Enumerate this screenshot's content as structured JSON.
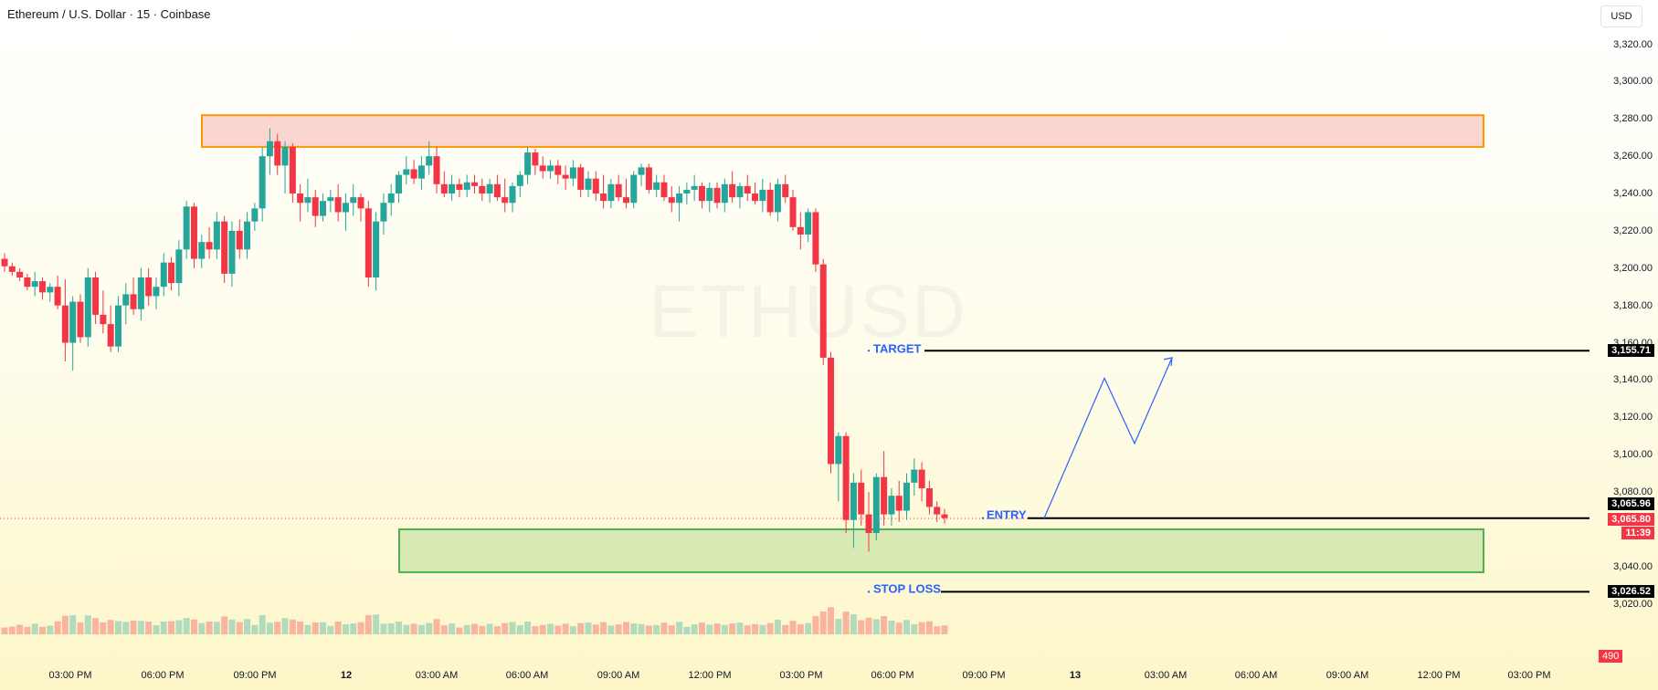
{
  "header": {
    "title": "Ethereum / U.S. Dollar · 15 · Coinbase",
    "currency": "USD"
  },
  "watermark": "ETHUSD",
  "price_axis": {
    "ticks": [
      "3,320.00",
      "3,300.00",
      "3,280.00",
      "3,260.00",
      "3,240.00",
      "3,220.00",
      "3,200.00",
      "3,180.00",
      "3,160.00",
      "3,140.00",
      "3,120.00",
      "3,100.00",
      "3,080.00",
      "3,040.00",
      "3,020.00"
    ],
    "target_label": "3,155.71",
    "entry_label": "3,065.96",
    "last_price": "3,065.80",
    "countdown": "11:39",
    "stop_label": "3,026.52"
  },
  "time_axis": {
    "ticks": [
      "03:00 PM",
      "06:00 PM",
      "09:00 PM",
      "12",
      "03:00 AM",
      "06:00 AM",
      "09:00 AM",
      "12:00 PM",
      "03:00 PM",
      "06:00 PM",
      "09:00 PM",
      "13",
      "03:00 AM",
      "06:00 AM",
      "09:00 AM",
      "12:00 PM",
      "03:00 PM"
    ]
  },
  "annotations": {
    "target": "TARGET",
    "entry": "ENTRY",
    "stop_loss": "STOP LOSS"
  },
  "volume_label": "490",
  "colors": {
    "up": "#26a69a",
    "down": "#f23645",
    "target_line": "#000000",
    "annot": "#2962ff",
    "supply_fill": "#fbd5d0",
    "supply_border": "#ff9800",
    "demand_fill": "#d9e9b4",
    "demand_border": "#4caf50"
  },
  "chart_data": {
    "type": "candlestick",
    "symbol": "ETHUSD",
    "interval": "15",
    "candles_ohlc": [
      [
        3205,
        3208,
        3198,
        3201
      ],
      [
        3201,
        3203,
        3196,
        3198
      ],
      [
        3198,
        3200,
        3193,
        3195
      ],
      [
        3195,
        3197,
        3188,
        3190
      ],
      [
        3190,
        3198,
        3185,
        3193
      ],
      [
        3193,
        3195,
        3183,
        3187
      ],
      [
        3187,
        3192,
        3182,
        3190
      ],
      [
        3190,
        3196,
        3178,
        3180
      ],
      [
        3180,
        3194,
        3150,
        3160
      ],
      [
        3160,
        3185,
        3145,
        3182
      ],
      [
        3182,
        3186,
        3160,
        3163
      ],
      [
        3163,
        3200,
        3158,
        3195
      ],
      [
        3195,
        3198,
        3170,
        3175
      ],
      [
        3175,
        3188,
        3165,
        3170
      ],
      [
        3170,
        3180,
        3155,
        3158
      ],
      [
        3158,
        3185,
        3155,
        3180
      ],
      [
        3180,
        3192,
        3170,
        3186
      ],
      [
        3186,
        3195,
        3175,
        3178
      ],
      [
        3178,
        3200,
        3172,
        3195
      ],
      [
        3195,
        3200,
        3180,
        3185
      ],
      [
        3185,
        3195,
        3178,
        3190
      ],
      [
        3190,
        3208,
        3185,
        3203
      ],
      [
        3203,
        3206,
        3188,
        3192
      ],
      [
        3192,
        3215,
        3185,
        3210
      ],
      [
        3210,
        3236,
        3205,
        3233
      ],
      [
        3233,
        3235,
        3200,
        3205
      ],
      [
        3205,
        3218,
        3200,
        3214
      ],
      [
        3214,
        3222,
        3205,
        3210
      ],
      [
        3210,
        3230,
        3205,
        3225
      ],
      [
        3225,
        3228,
        3192,
        3197
      ],
      [
        3197,
        3225,
        3190,
        3220
      ],
      [
        3220,
        3226,
        3205,
        3210
      ],
      [
        3210,
        3230,
        3205,
        3225
      ],
      [
        3225,
        3235,
        3220,
        3232
      ],
      [
        3232,
        3265,
        3225,
        3260
      ],
      [
        3260,
        3275,
        3250,
        3268
      ],
      [
        3268,
        3272,
        3250,
        3255
      ],
      [
        3255,
        3268,
        3240,
        3265
      ],
      [
        3265,
        3267,
        3235,
        3240
      ],
      [
        3240,
        3245,
        3225,
        3235
      ],
      [
        3235,
        3248,
        3230,
        3238
      ],
      [
        3238,
        3242,
        3222,
        3228
      ],
      [
        3228,
        3240,
        3225,
        3236
      ],
      [
        3236,
        3242,
        3230,
        3238
      ],
      [
        3238,
        3245,
        3225,
        3230
      ],
      [
        3230,
        3240,
        3220,
        3235
      ],
      [
        3235,
        3245,
        3228,
        3238
      ],
      [
        3238,
        3240,
        3225,
        3232
      ],
      [
        3232,
        3236,
        3190,
        3195
      ],
      [
        3195,
        3230,
        3188,
        3225
      ],
      [
        3225,
        3240,
        3218,
        3235
      ],
      [
        3235,
        3245,
        3228,
        3240
      ],
      [
        3240,
        3252,
        3235,
        3250
      ],
      [
        3250,
        3260,
        3245,
        3253
      ],
      [
        3253,
        3258,
        3245,
        3248
      ],
      [
        3248,
        3260,
        3242,
        3255
      ],
      [
        3255,
        3268,
        3250,
        3260
      ],
      [
        3260,
        3265,
        3240,
        3245
      ],
      [
        3245,
        3252,
        3238,
        3240
      ],
      [
        3240,
        3250,
        3236,
        3245
      ],
      [
        3245,
        3248,
        3238,
        3242
      ],
      [
        3242,
        3250,
        3238,
        3246
      ],
      [
        3246,
        3250,
        3240,
        3244
      ],
      [
        3244,
        3248,
        3236,
        3240
      ],
      [
        3240,
        3248,
        3235,
        3245
      ],
      [
        3245,
        3250,
        3236,
        3238
      ],
      [
        3238,
        3248,
        3230,
        3235
      ],
      [
        3235,
        3246,
        3230,
        3244
      ],
      [
        3244,
        3252,
        3238,
        3250
      ],
      [
        3250,
        3265,
        3245,
        3262
      ],
      [
        3262,
        3264,
        3250,
        3255
      ],
      [
        3255,
        3260,
        3248,
        3252
      ],
      [
        3252,
        3258,
        3248,
        3255
      ],
      [
        3255,
        3258,
        3245,
        3250
      ],
      [
        3250,
        3255,
        3242,
        3248
      ],
      [
        3248,
        3258,
        3244,
        3254
      ],
      [
        3254,
        3256,
        3238,
        3242
      ],
      [
        3242,
        3252,
        3238,
        3248
      ],
      [
        3248,
        3252,
        3236,
        3240
      ],
      [
        3240,
        3250,
        3232,
        3236
      ],
      [
        3236,
        3248,
        3232,
        3245
      ],
      [
        3245,
        3250,
        3236,
        3238
      ],
      [
        3238,
        3248,
        3232,
        3235
      ],
      [
        3235,
        3252,
        3232,
        3250
      ],
      [
        3250,
        3256,
        3244,
        3254
      ],
      [
        3254,
        3256,
        3240,
        3242
      ],
      [
        3242,
        3250,
        3238,
        3246
      ],
      [
        3246,
        3250,
        3236,
        3238
      ],
      [
        3238,
        3244,
        3230,
        3235
      ],
      [
        3235,
        3244,
        3225,
        3240
      ],
      [
        3240,
        3246,
        3234,
        3242
      ],
      [
        3242,
        3250,
        3236,
        3244
      ],
      [
        3244,
        3246,
        3232,
        3236
      ],
      [
        3236,
        3246,
        3230,
        3243
      ],
      [
        3243,
        3246,
        3232,
        3235
      ],
      [
        3235,
        3248,
        3230,
        3245
      ],
      [
        3245,
        3252,
        3235,
        3238
      ],
      [
        3238,
        3246,
        3232,
        3244
      ],
      [
        3244,
        3250,
        3236,
        3240
      ],
      [
        3240,
        3246,
        3234,
        3236
      ],
      [
        3236,
        3248,
        3230,
        3242
      ],
      [
        3242,
        3246,
        3228,
        3230
      ],
      [
        3230,
        3248,
        3225,
        3245
      ],
      [
        3245,
        3250,
        3235,
        3238
      ],
      [
        3238,
        3242,
        3220,
        3222
      ],
      [
        3222,
        3230,
        3210,
        3218
      ],
      [
        3218,
        3232,
        3214,
        3230
      ],
      [
        3230,
        3232,
        3198,
        3202
      ],
      [
        3202,
        3205,
        3148,
        3152
      ],
      [
        3152,
        3155,
        3090,
        3095
      ],
      [
        3095,
        3112,
        3075,
        3110
      ],
      [
        3110,
        3112,
        3058,
        3065
      ],
      [
        3065,
        3090,
        3050,
        3085
      ],
      [
        3085,
        3092,
        3062,
        3068
      ],
      [
        3068,
        3080,
        3048,
        3058
      ],
      [
        3058,
        3090,
        3054,
        3088
      ],
      [
        3088,
        3102,
        3062,
        3068
      ],
      [
        3068,
        3082,
        3062,
        3078
      ],
      [
        3078,
        3086,
        3064,
        3070
      ],
      [
        3070,
        3090,
        3065,
        3085
      ],
      [
        3085,
        3098,
        3078,
        3092
      ],
      [
        3092,
        3096,
        3075,
        3082
      ],
      [
        3082,
        3086,
        3068,
        3072
      ],
      [
        3072,
        3075,
        3064,
        3068
      ],
      [
        3068,
        3071,
        3063,
        3066
      ]
    ],
    "levels": {
      "target": 3155.71,
      "entry": 3065.96,
      "stop_loss": 3026.52,
      "last": 3065.8
    },
    "zones": [
      {
        "name": "supply",
        "top": 3282,
        "bottom": 3265
      },
      {
        "name": "demand",
        "top": 3060,
        "bottom": 3037
      }
    ],
    "projection": [
      3065.96,
      3141,
      3106,
      3152
    ],
    "ylim": [
      3020,
      3320
    ],
    "grid": false
  }
}
